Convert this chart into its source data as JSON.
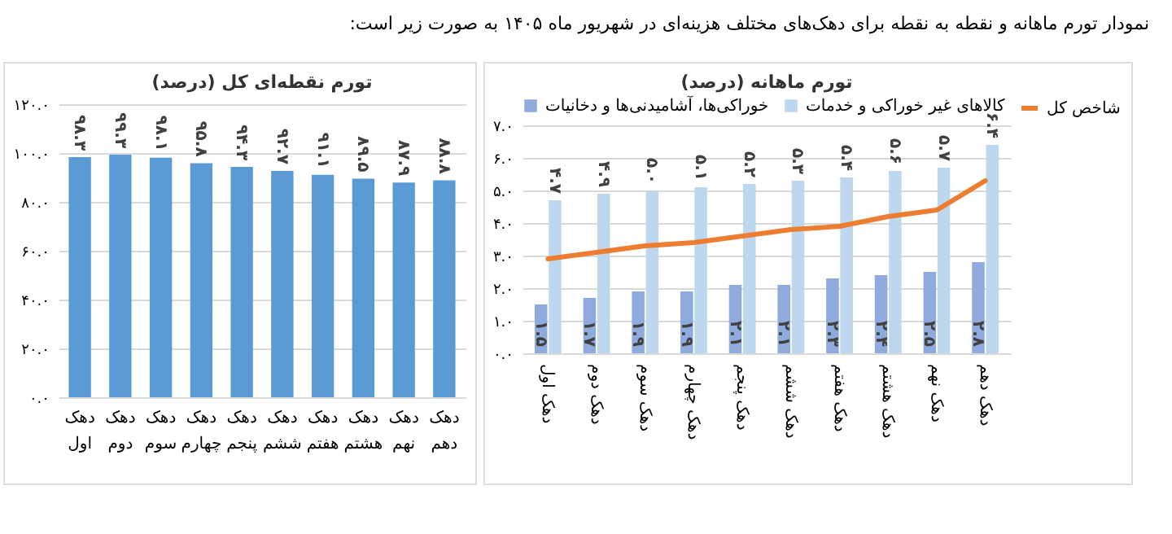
{
  "chart_data": [
    {
      "type": "bar",
      "title": "تورم ماهانه (درصد)",
      "annotations": [
        "نمودار تورم ماهانه و نقطه به نقطه برای دهک‌های مختلف هزینه‌ای در شهریور ماه ۱۴۰۵ به صورت زیر است:"
      ],
      "categories": [
        "دهک اول",
        "دهک دوم",
        "دهک سوم",
        "دهک چهارم",
        "دهک پنجم",
        "دهک ششم",
        "دهک هفتم",
        "دهک هشتم",
        "دهک نهم",
        "دهک دهم"
      ],
      "series": [
        {
          "name": "خوراکی‌ها، آشامیدنی‌ها و دخانیات",
          "color": "#8faadc",
          "values": [
            1.5,
            1.7,
            1.9,
            1.9,
            2.1,
            2.1,
            2.3,
            2.4,
            2.5,
            2.8
          ],
          "value_labels": [
            "۱.۵",
            "۱.۷",
            "۱.۹",
            "۱.۹",
            "۲.۱",
            "۲.۱",
            "۲.۳",
            "۲.۴",
            "۲.۵",
            "۲.۸"
          ]
        },
        {
          "name": "کالاهای غیر خوراکی و خدمات",
          "color": "#bdd7ee",
          "values": [
            4.7,
            4.9,
            5.0,
            5.1,
            5.2,
            5.3,
            5.4,
            5.6,
            5.7,
            6.4
          ],
          "value_labels": [
            "۴.۷",
            "۴.۹",
            "۵.۰",
            "۵.۱",
            "۵.۲",
            "۵.۳",
            "۵.۴",
            "۵.۶",
            "۵.۷",
            "۶.۴"
          ]
        },
        {
          "name": "شاخص کل",
          "type": "line",
          "color": "#ed7d31",
          "values": [
            2.9,
            3.1,
            3.3,
            3.4,
            3.6,
            3.8,
            3.9,
            4.2,
            4.4,
            5.3
          ]
        }
      ],
      "ylim": [
        0,
        7
      ],
      "yticks": [
        {
          "value": 0,
          "label": "۰.۰"
        },
        {
          "value": 1,
          "label": "۱.۰"
        },
        {
          "value": 2,
          "label": "۲.۰"
        },
        {
          "value": 3,
          "label": "۳.۰"
        },
        {
          "value": 4,
          "label": "۴.۰"
        },
        {
          "value": 5,
          "label": "۵.۰"
        },
        {
          "value": 6,
          "label": "۶.۰"
        },
        {
          "value": 7,
          "label": "۷.۰"
        }
      ],
      "grid": "y",
      "legend": "top"
    },
    {
      "type": "bar",
      "title": "تورم نقطه‌ای کل (درصد)",
      "categories": [
        "دهک اول",
        "دهک دوم",
        "دهک سوم",
        "دهک چهارم",
        "دهک پنجم",
        "دهک ششم",
        "دهک هفتم",
        "دهک هشتم",
        "دهک نهم",
        "دهک دهم"
      ],
      "values": [
        98.3,
        99.3,
        98.1,
        95.8,
        94.3,
        92.7,
        91.1,
        89.5,
        87.9,
        88.8
      ],
      "color": "#5b9bd5",
      "value_labels": [
        "۹۸.۳",
        "۹۹.۳",
        "۹۸.۱",
        "۹۵.۸",
        "۹۴.۳",
        "۹۲.۷",
        "۹۱.۱",
        "۸۹.۵",
        "۸۷.۹",
        "۸۸.۸"
      ],
      "ylim": [
        0,
        120
      ],
      "yticks": [
        {
          "value": 0,
          "label": "۰.۰"
        },
        {
          "value": 20,
          "label": "۲۰.۰"
        },
        {
          "value": 40,
          "label": "۴۰.۰"
        },
        {
          "value": 60,
          "label": "۶۰.۰"
        },
        {
          "value": 80,
          "label": "۸۰.۰"
        },
        {
          "value": 100,
          "label": "۱۰۰.۰"
        },
        {
          "value": 120,
          "label": "۱۲۰.۰"
        }
      ],
      "grid": "y",
      "legend": false
    }
  ]
}
